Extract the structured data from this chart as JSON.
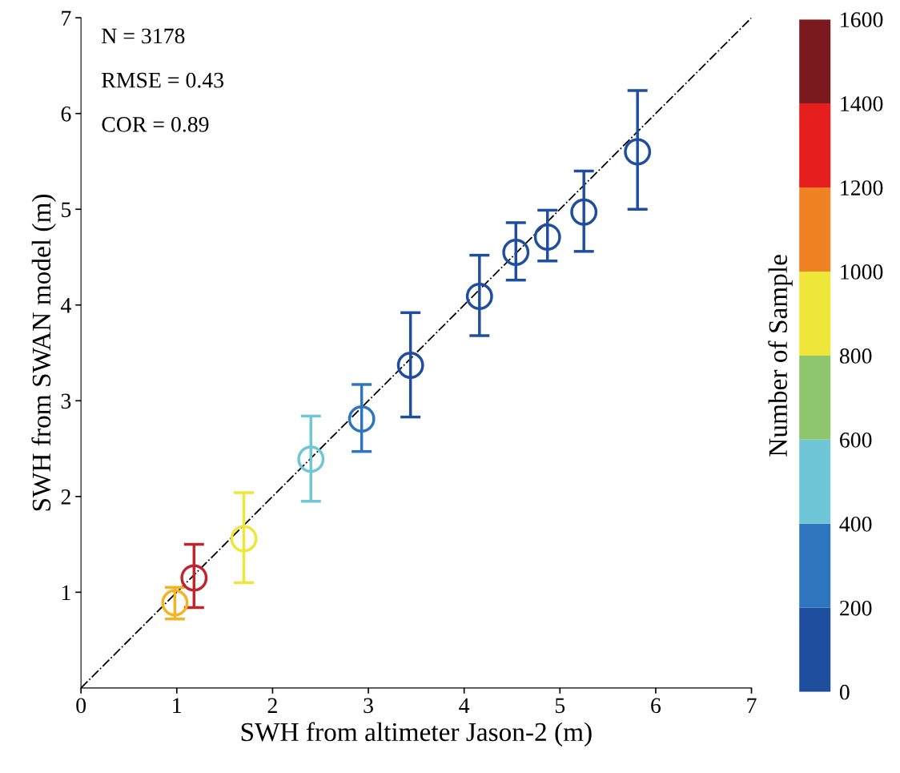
{
  "chart_data": {
    "type": "scatter",
    "xlabel": "SWH from altimeter Jason-2 (m)",
    "ylabel": "SWH from SWAN model (m)",
    "clabel": "Number of Sample",
    "annotations": [
      "N = 3178",
      "RMSE = 0.43",
      "COR = 0.89"
    ],
    "xlim": [
      0,
      7
    ],
    "ylim": [
      0,
      7
    ],
    "xticks": [
      0,
      1,
      2,
      3,
      4,
      5,
      6,
      7
    ],
    "yticks": [
      1,
      2,
      3,
      4,
      5,
      6,
      7
    ],
    "clim": [
      0,
      1600
    ],
    "cticks": [
      0,
      200,
      400,
      600,
      800,
      1000,
      1200,
      1400,
      1600
    ],
    "grid": false,
    "marker": "circle",
    "series": [
      {
        "x": [
          0.98,
          1.18,
          1.7,
          2.4,
          2.93,
          3.44,
          4.16,
          4.54,
          4.87,
          5.25,
          5.81
        ],
        "values": [
          0.89,
          1.15,
          1.56,
          2.39,
          2.81,
          3.37,
          4.09,
          4.55,
          4.71,
          4.97,
          5.6
        ],
        "colors": [
          "#f5b320",
          "#c0242c",
          "#efe63a",
          "#6fc6d6",
          "#2e75bd",
          "#1f4e9f",
          "#1f4e9f",
          "#1f4e9f",
          "#1f4e9f",
          "#1f4e9f",
          "#1f4e9f"
        ],
        "errors": [
          [
            0.72,
            1.05
          ],
          [
            0.84,
            1.5
          ],
          [
            1.1,
            2.04
          ],
          [
            1.95,
            2.84
          ],
          [
            2.47,
            3.17
          ],
          [
            2.83,
            3.92
          ],
          [
            3.68,
            4.52
          ],
          [
            4.26,
            4.86
          ],
          [
            4.46,
            4.99
          ],
          [
            4.56,
            5.4
          ],
          [
            5.0,
            6.24
          ]
        ]
      },
      {
        "type": "line",
        "x": [
          0,
          7
        ],
        "values": [
          0,
          7
        ],
        "color": "#000000",
        "line_style": "dashed",
        "marker": "none"
      }
    ]
  }
}
